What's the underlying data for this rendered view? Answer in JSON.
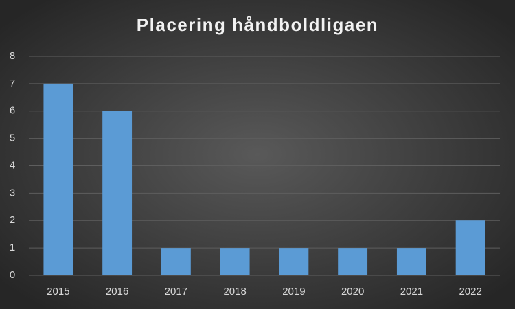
{
  "chart_data": {
    "type": "bar",
    "title": "Placering håndboldligaen",
    "categories": [
      "2015",
      "2016",
      "2017",
      "2018",
      "2019",
      "2020",
      "2021",
      "2022"
    ],
    "values": [
      7,
      6,
      1,
      1,
      1,
      1,
      1,
      2
    ],
    "color": "#5b9bd5",
    "ylim": [
      0,
      8
    ],
    "yticks": [
      0,
      1,
      2,
      3,
      4,
      5,
      6,
      7,
      8
    ],
    "grid": true
  }
}
